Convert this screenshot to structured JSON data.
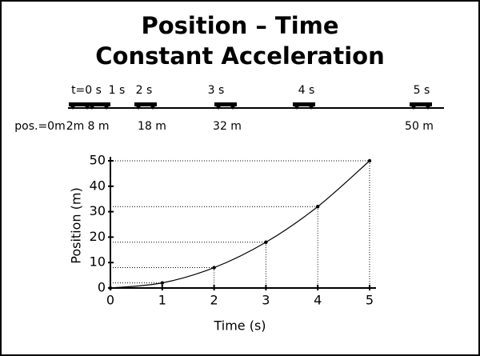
{
  "chart_data": {
    "type": "line",
    "title": "Position – Time",
    "subtitle": "Constant Acceleration",
    "time_labels": [
      "t=0 s",
      "1 s",
      "2 s",
      "3 s",
      "4 s",
      "5 s"
    ],
    "position_labels": [
      "pos.=0m",
      "2m",
      "8 m",
      "18 m",
      "32 m",
      "50 m"
    ],
    "x_label": "Time (s)",
    "y_label": "Position (m)",
    "x": [
      0,
      1,
      2,
      3,
      4,
      5
    ],
    "series": [
      {
        "color": "#000000",
        "values": [
          0,
          2,
          8,
          18,
          32,
          50
        ]
      }
    ],
    "xlim": [
      0,
      5
    ],
    "ylim": [
      0,
      50
    ],
    "xticks": [
      0,
      1,
      2,
      3,
      4,
      5
    ],
    "yticks": [
      0,
      10,
      20,
      30,
      40,
      50
    ]
  }
}
